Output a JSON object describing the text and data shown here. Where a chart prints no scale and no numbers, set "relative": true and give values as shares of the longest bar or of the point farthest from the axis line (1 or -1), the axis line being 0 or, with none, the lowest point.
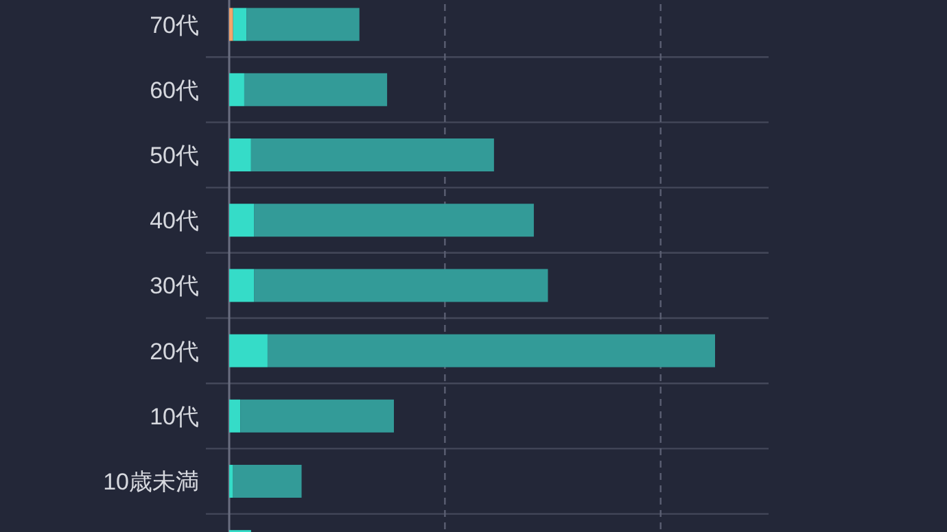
{
  "chart_data": {
    "type": "bar",
    "orientation": "horizontal",
    "stacked": true,
    "relative": true,
    "grid": true,
    "ref_lines": [
      {
        "axis": "x",
        "value": 0.444,
        "color": "#5b5f72",
        "line_style": "dashed"
      },
      {
        "axis": "x",
        "value": 0.888,
        "color": "#5b5f72",
        "line_style": "dashed"
      }
    ],
    "categories": [
      "70代",
      "60代",
      "50代",
      "40代",
      "30代",
      "20代",
      "10代",
      "10歳未満",
      null
    ],
    "series": [
      {
        "color": "#f4a46c",
        "values": [
          0.008,
          0,
          0,
          0,
          0,
          0,
          0,
          0,
          0
        ]
      },
      {
        "color": "#35dcc8",
        "values": [
          0.028,
          0.031,
          0.045,
          0.051,
          0.051,
          0.079,
          0.023,
          0.008,
          0.045
        ]
      },
      {
        "color": "#339b98",
        "values": [
          0.232,
          0.294,
          0.5,
          0.576,
          0.605,
          0.921,
          0.316,
          0.141,
          null
        ]
      }
    ]
  }
}
